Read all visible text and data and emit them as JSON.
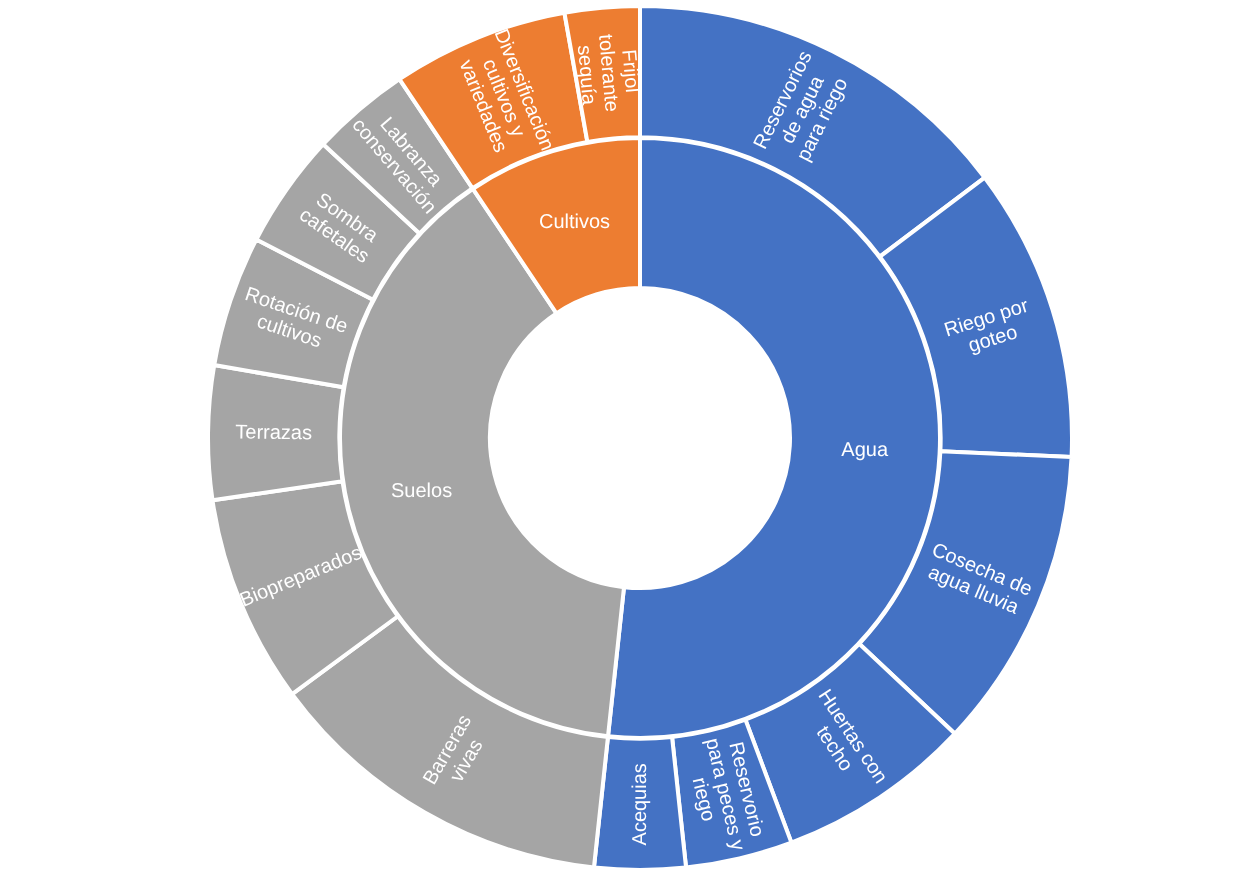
{
  "chart_data": [
    {
      "type": "donut",
      "categories": [
        "Agua",
        "Suelos",
        "Cultivos"
      ],
      "values": [
        51.7,
        38.9,
        9.4
      ],
      "colors": [
        "#4472c4",
        "#a5a5a5",
        "#ed7d31"
      ]
    },
    {
      "type": "donut",
      "categories": [
        "Reservorios de agua para riego",
        "Riego por goteo",
        "Cosecha de agua lluvia",
        "Huertas con techo",
        "Reservorio para peces y riego",
        "Acequias",
        "Barreras vivas",
        "Biopreparados",
        "Terrazas",
        "Rotación de cultivos",
        "Sombra cafetales",
        "Labranza conservación",
        "Diversificación cultivos y variedades",
        "Frijol tolerante sequía"
      ],
      "values": [
        14.7,
        11.0,
        11.3,
        7.3,
        4.0,
        3.4,
        13.2,
        7.8,
        5.0,
        4.9,
        4.3,
        3.7,
        6.6,
        2.8
      ],
      "colors": [
        "#4472c4",
        "#4472c4",
        "#4472c4",
        "#4472c4",
        "#4472c4",
        "#4472c4",
        "#a5a5a5",
        "#a5a5a5",
        "#a5a5a5",
        "#a5a5a5",
        "#a5a5a5",
        "#a5a5a5",
        "#ed7d31",
        "#ed7d31"
      ]
    }
  ]
}
